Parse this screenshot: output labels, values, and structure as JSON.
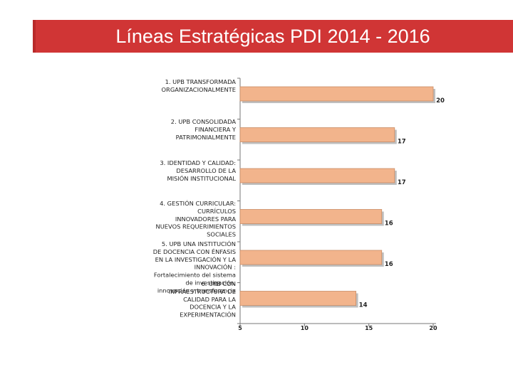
{
  "header": {
    "title": "Líneas Estratégicas PDI 2014 - 2016"
  },
  "colors": {
    "title_bar": "#d03535",
    "bar_fill": "#f2b48c",
    "bar_stroke": "#c98d66",
    "bar_shadow": "#8a8a8a"
  },
  "chart_data": {
    "type": "bar",
    "orientation": "horizontal",
    "title": "",
    "xlabel": "",
    "ylabel": "",
    "xlim": [
      5,
      20
    ],
    "xticks": [
      5,
      10,
      15,
      20
    ],
    "grid": false,
    "legend": "none",
    "categories": [
      [
        "1. UPB TRANSFORMADA",
        "ORGANIZACIONALMENTE"
      ],
      [
        "2. UPB CONSOLIDADA",
        "FINANCIERA Y",
        "PATRIMONIALMENTE"
      ],
      [
        "3. IDENTIDAD Y CALIDAD:",
        "DESARROLLO DE LA",
        "MISIÓN INSTITUCIONAL"
      ],
      [
        "4. GESTIÓN CURRICULAR:",
        "CURRÍCULOS",
        "INNOVADORES PARA",
        "NUEVOS REQUERIMIENTOS",
        "SOCIALES"
      ],
      [
        "5. UPB UNA INSTITUCIÓN",
        "DE DOCENCIA CON ÉNFASIS",
        "EN LA INVESTIGACIÓN Y LA",
        "INNOVACIÓN :",
        "Fortalecimiento del sistema",
        "de investigación,",
        "innovación y transferencia"
      ],
      [
        "6. UPB CON",
        "INFRAESTRUCTURA DE",
        "CALIDAD PARA LA",
        "DOCENCIA Y LA",
        "EXPERIMENTACIÓN"
      ]
    ],
    "values": [
      20,
      17,
      17,
      16,
      16,
      14
    ],
    "value_labels": [
      "20",
      "17",
      "17",
      "16",
      "16",
      "14"
    ],
    "tick_labels": [
      "5",
      "10",
      "15",
      "20"
    ]
  }
}
